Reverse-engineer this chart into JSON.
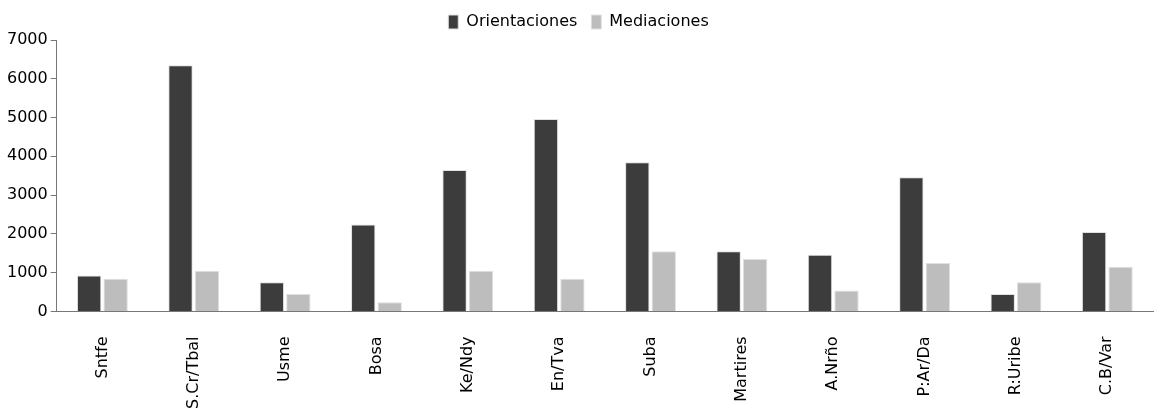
{
  "chart_data": {
    "type": "bar",
    "categories": [
      "Sntfe",
      "S.Cr/Tbal",
      "Usme",
      "Bosa",
      "Ke/Ndy",
      "En/Tva",
      "Suba",
      "Martires",
      "A.Nrño",
      "P:Ar/Da",
      "R:Uribe",
      "C.B/Var"
    ],
    "series": [
      {
        "name": "Orientaciones",
        "color": "#3c3c3c",
        "values": [
          930,
          6350,
          750,
          2240,
          3650,
          4960,
          3850,
          1550,
          1460,
          3460,
          450,
          2050
        ]
      },
      {
        "name": "Mediaciones",
        "color": "#bdbdbd",
        "values": [
          840,
          1050,
          450,
          240,
          1050,
          840,
          1550,
          1350,
          540,
          1250,
          750,
          1150
        ]
      }
    ],
    "ylim": [
      0,
      7000
    ],
    "yticks": [
      0,
      1000,
      2000,
      3000,
      4000,
      5000,
      6000,
      7000
    ],
    "grid": false,
    "legend": "top"
  }
}
